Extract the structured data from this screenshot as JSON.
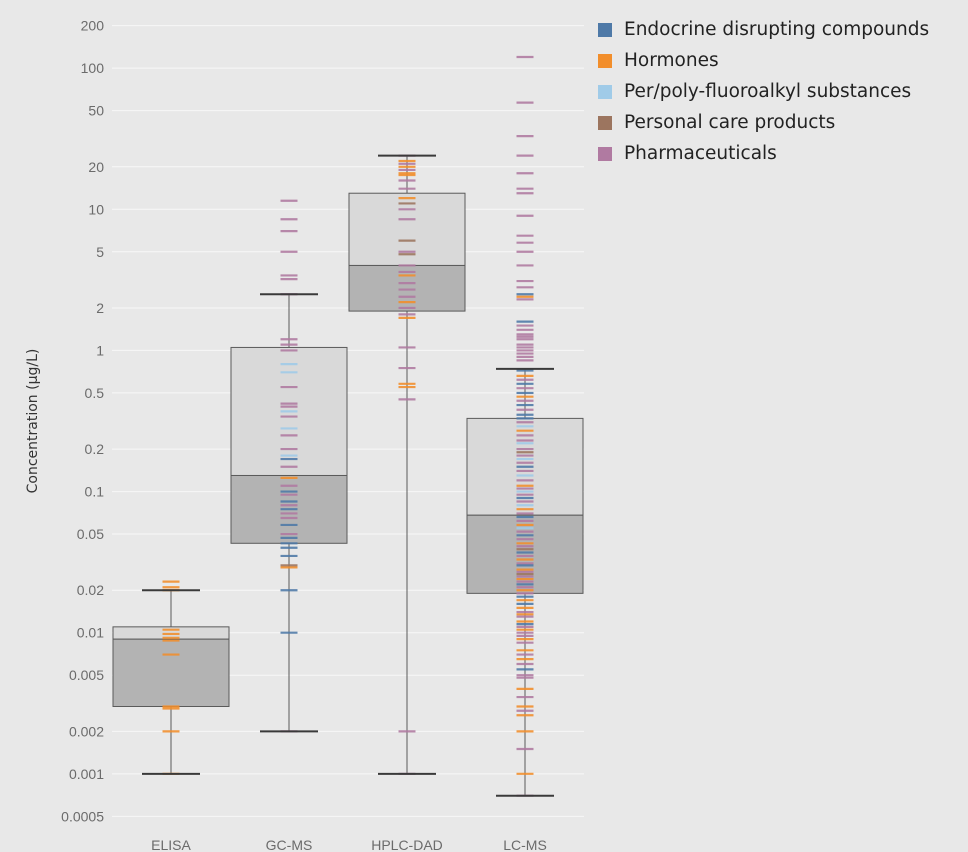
{
  "chart_data": {
    "type": "box",
    "ylabel": "Concentration (µg/L)",
    "y_scale": "log",
    "ylim": [
      0.0004,
      250
    ],
    "y_ticks": [
      {
        "value": 0.0005,
        "label": "0.0005"
      },
      {
        "value": 0.001,
        "label": "0.001"
      },
      {
        "value": 0.002,
        "label": "0.002"
      },
      {
        "value": 0.005,
        "label": "0.005"
      },
      {
        "value": 0.01,
        "label": "0.01"
      },
      {
        "value": 0.02,
        "label": "0.02"
      },
      {
        "value": 0.05,
        "label": "0.05"
      },
      {
        "value": 0.1,
        "label": "0.1"
      },
      {
        "value": 0.2,
        "label": "0.2"
      },
      {
        "value": 0.5,
        "label": "0.5"
      },
      {
        "value": 1,
        "label": "1"
      },
      {
        "value": 2,
        "label": "2"
      },
      {
        "value": 5,
        "label": "5"
      },
      {
        "value": 10,
        "label": "10"
      },
      {
        "value": 20,
        "label": "20"
      },
      {
        "value": 50,
        "label": "50"
      },
      {
        "value": 100,
        "label": "100"
      },
      {
        "value": 200,
        "label": "200"
      }
    ],
    "grid": true,
    "legend_position": "top-right",
    "legend": [
      {
        "key": "edc",
        "label": "Endocrine disrupting compounds",
        "color": "#4e79a7"
      },
      {
        "key": "hor",
        "label": "Hormones",
        "color": "#f28e2b"
      },
      {
        "key": "pfas",
        "label": "Per/poly-fluoroalkyl substances",
        "color": "#a0cbe8"
      },
      {
        "key": "pcp",
        "label": "Personal care products",
        "color": "#9c755f"
      },
      {
        "key": "pha",
        "label": "Pharmaceuticals",
        "color": "#b07aa1"
      }
    ],
    "categories": [
      "ELISA",
      "GC-MS",
      "HPLC-DAD",
      "LC-MS"
    ],
    "boxes": [
      {
        "category": "ELISA",
        "min": 0.001,
        "q1": 0.003,
        "median": 0.009,
        "q3": 0.011,
        "max": 0.02
      },
      {
        "category": "GC-MS",
        "min": 0.002,
        "q1": 0.043,
        "median": 0.13,
        "q3": 1.05,
        "max": 2.5
      },
      {
        "category": "HPLC-DAD",
        "min": 0.001,
        "q1": 1.9,
        "median": 4.0,
        "q3": 13,
        "max": 24
      },
      {
        "category": "LC-MS",
        "min": 0.0007,
        "q1": 0.019,
        "median": 0.068,
        "q3": 0.33,
        "max": 0.74
      }
    ],
    "points": {
      "ELISA": [
        [
          0.023,
          "hor"
        ],
        [
          0.021,
          "hor"
        ],
        [
          0.02,
          "hor"
        ],
        [
          0.0105,
          "hor"
        ],
        [
          0.0098,
          "hor"
        ],
        [
          0.0092,
          "hor"
        ],
        [
          0.0088,
          "hor"
        ],
        [
          0.007,
          "hor"
        ],
        [
          0.003,
          "hor"
        ],
        [
          0.0029,
          "hor"
        ],
        [
          0.002,
          "hor"
        ],
        [
          0.001,
          "hor"
        ]
      ],
      "GC-MS": [
        [
          11.5,
          "pha"
        ],
        [
          8.5,
          "pha"
        ],
        [
          7.0,
          "pha"
        ],
        [
          5.0,
          "pha"
        ],
        [
          3.4,
          "pha"
        ],
        [
          3.2,
          "pha"
        ],
        [
          2.5,
          "pha"
        ],
        [
          1.2,
          "pha"
        ],
        [
          1.1,
          "pha"
        ],
        [
          1.0,
          "pha"
        ],
        [
          0.8,
          "pfas"
        ],
        [
          0.7,
          "pfas"
        ],
        [
          0.55,
          "pha"
        ],
        [
          0.42,
          "pha"
        ],
        [
          0.4,
          "pha"
        ],
        [
          0.37,
          "pfas"
        ],
        [
          0.34,
          "pha"
        ],
        [
          0.28,
          "pfas"
        ],
        [
          0.25,
          "pha"
        ],
        [
          0.2,
          "pha"
        ],
        [
          0.18,
          "pfas"
        ],
        [
          0.17,
          "edc"
        ],
        [
          0.15,
          "pha"
        ],
        [
          0.125,
          "hor"
        ],
        [
          0.11,
          "pha"
        ],
        [
          0.1,
          "edc"
        ],
        [
          0.095,
          "pha"
        ],
        [
          0.085,
          "edc"
        ],
        [
          0.08,
          "pha"
        ],
        [
          0.075,
          "edc"
        ],
        [
          0.07,
          "pha"
        ],
        [
          0.065,
          "pha"
        ],
        [
          0.058,
          "edc"
        ],
        [
          0.05,
          "pha"
        ],
        [
          0.047,
          "edc"
        ],
        [
          0.043,
          "edc"
        ],
        [
          0.04,
          "edc"
        ],
        [
          0.035,
          "edc"
        ],
        [
          0.03,
          "pcp"
        ],
        [
          0.029,
          "hor"
        ],
        [
          0.02,
          "edc"
        ],
        [
          0.01,
          "edc"
        ],
        [
          0.002,
          "pha"
        ]
      ],
      "HPLC-DAD": [
        [
          24,
          "pha"
        ],
        [
          22,
          "hor"
        ],
        [
          21,
          "pha"
        ],
        [
          20,
          "hor"
        ],
        [
          19,
          "pha"
        ],
        [
          18,
          "hor"
        ],
        [
          17.5,
          "hor"
        ],
        [
          16,
          "pha"
        ],
        [
          14,
          "pha"
        ],
        [
          12,
          "hor"
        ],
        [
          11,
          "pcp"
        ],
        [
          10,
          "pha"
        ],
        [
          8.5,
          "pha"
        ],
        [
          6.0,
          "pcp"
        ],
        [
          5.0,
          "pha"
        ],
        [
          4.8,
          "pcp"
        ],
        [
          4.0,
          "pha"
        ],
        [
          3.6,
          "pha"
        ],
        [
          3.4,
          "hor"
        ],
        [
          3.0,
          "pha"
        ],
        [
          2.7,
          "pha"
        ],
        [
          2.4,
          "pha"
        ],
        [
          2.2,
          "hor"
        ],
        [
          2.0,
          "pha"
        ],
        [
          1.8,
          "pha"
        ],
        [
          1.7,
          "hor"
        ],
        [
          1.05,
          "pha"
        ],
        [
          0.75,
          "pha"
        ],
        [
          0.58,
          "hor"
        ],
        [
          0.55,
          "hor"
        ],
        [
          0.45,
          "pha"
        ],
        [
          0.002,
          "pha"
        ],
        [
          0.001,
          "pha"
        ]
      ],
      "LC-MS": [
        [
          120,
          "pha"
        ],
        [
          57,
          "pha"
        ],
        [
          33,
          "pha"
        ],
        [
          24,
          "pha"
        ],
        [
          18,
          "pha"
        ],
        [
          14,
          "pha"
        ],
        [
          13,
          "pha"
        ],
        [
          9.0,
          "pha"
        ],
        [
          6.5,
          "pha"
        ],
        [
          5.8,
          "pha"
        ],
        [
          5.0,
          "pha"
        ],
        [
          4.0,
          "pha"
        ],
        [
          3.1,
          "pha"
        ],
        [
          2.8,
          "pha"
        ],
        [
          2.5,
          "edc"
        ],
        [
          2.4,
          "hor"
        ],
        [
          2.3,
          "pha"
        ],
        [
          1.6,
          "edc"
        ],
        [
          1.5,
          "pha"
        ],
        [
          1.4,
          "pha"
        ],
        [
          1.3,
          "pha"
        ],
        [
          1.25,
          "pha"
        ],
        [
          1.2,
          "pha"
        ],
        [
          1.1,
          "pha"
        ],
        [
          1.05,
          "pha"
        ],
        [
          1.0,
          "pha"
        ],
        [
          0.95,
          "pha"
        ],
        [
          0.9,
          "pha"
        ],
        [
          0.85,
          "pha"
        ],
        [
          0.72,
          "edc"
        ],
        [
          0.66,
          "hor"
        ],
        [
          0.62,
          "pha"
        ],
        [
          0.58,
          "edc"
        ],
        [
          0.54,
          "pha"
        ],
        [
          0.5,
          "edc"
        ],
        [
          0.47,
          "hor"
        ],
        [
          0.44,
          "pha"
        ],
        [
          0.41,
          "edc"
        ],
        [
          0.38,
          "pha"
        ],
        [
          0.35,
          "edc"
        ],
        [
          0.33,
          "edc"
        ],
        [
          0.31,
          "pha"
        ],
        [
          0.29,
          "pfas"
        ],
        [
          0.27,
          "hor"
        ],
        [
          0.25,
          "pha"
        ],
        [
          0.23,
          "pha"
        ],
        [
          0.22,
          "pfas"
        ],
        [
          0.2,
          "pha"
        ],
        [
          0.19,
          "pcp"
        ],
        [
          0.18,
          "pha"
        ],
        [
          0.17,
          "pfas"
        ],
        [
          0.16,
          "pha"
        ],
        [
          0.15,
          "edc"
        ],
        [
          0.14,
          "pha"
        ],
        [
          0.13,
          "pfas"
        ],
        [
          0.12,
          "pha"
        ],
        [
          0.11,
          "hor"
        ],
        [
          0.105,
          "pha"
        ],
        [
          0.1,
          "pfas"
        ],
        [
          0.095,
          "pha"
        ],
        [
          0.09,
          "edc"
        ],
        [
          0.085,
          "pha"
        ],
        [
          0.08,
          "pfas"
        ],
        [
          0.075,
          "hor"
        ],
        [
          0.07,
          "pha"
        ],
        [
          0.066,
          "edc"
        ],
        [
          0.062,
          "pha"
        ],
        [
          0.058,
          "hor"
        ],
        [
          0.055,
          "pfas"
        ],
        [
          0.052,
          "pha"
        ],
        [
          0.049,
          "edc"
        ],
        [
          0.046,
          "pha"
        ],
        [
          0.043,
          "hor"
        ],
        [
          0.041,
          "pha"
        ],
        [
          0.039,
          "pcp"
        ],
        [
          0.037,
          "edc"
        ],
        [
          0.035,
          "pha"
        ],
        [
          0.033,
          "hor"
        ],
        [
          0.031,
          "pha"
        ],
        [
          0.03,
          "edc"
        ],
        [
          0.028,
          "hor"
        ],
        [
          0.027,
          "pha"
        ],
        [
          0.026,
          "pcp"
        ],
        [
          0.025,
          "pha"
        ],
        [
          0.024,
          "hor"
        ],
        [
          0.023,
          "pha"
        ],
        [
          0.022,
          "edc"
        ],
        [
          0.021,
          "pha"
        ],
        [
          0.02,
          "hor"
        ],
        [
          0.019,
          "pha"
        ],
        [
          0.018,
          "edc"
        ],
        [
          0.017,
          "hor"
        ],
        [
          0.016,
          "edc"
        ],
        [
          0.015,
          "hor"
        ],
        [
          0.014,
          "pha"
        ],
        [
          0.0135,
          "hor"
        ],
        [
          0.013,
          "pha"
        ],
        [
          0.012,
          "hor"
        ],
        [
          0.0115,
          "edc"
        ],
        [
          0.011,
          "pha"
        ],
        [
          0.0105,
          "hor"
        ],
        [
          0.01,
          "pha"
        ],
        [
          0.0095,
          "pha"
        ],
        [
          0.009,
          "hor"
        ],
        [
          0.0085,
          "pha"
        ],
        [
          0.0075,
          "hor"
        ],
        [
          0.007,
          "pha"
        ],
        [
          0.0065,
          "hor"
        ],
        [
          0.006,
          "pha"
        ],
        [
          0.0055,
          "edc"
        ],
        [
          0.005,
          "pha"
        ],
        [
          0.0048,
          "pha"
        ],
        [
          0.004,
          "hor"
        ],
        [
          0.0035,
          "pha"
        ],
        [
          0.003,
          "hor"
        ],
        [
          0.0028,
          "pha"
        ],
        [
          0.0026,
          "hor"
        ],
        [
          0.002,
          "hor"
        ],
        [
          0.0015,
          "pha"
        ],
        [
          0.001,
          "hor"
        ],
        [
          0.0007,
          "pha"
        ]
      ]
    }
  }
}
